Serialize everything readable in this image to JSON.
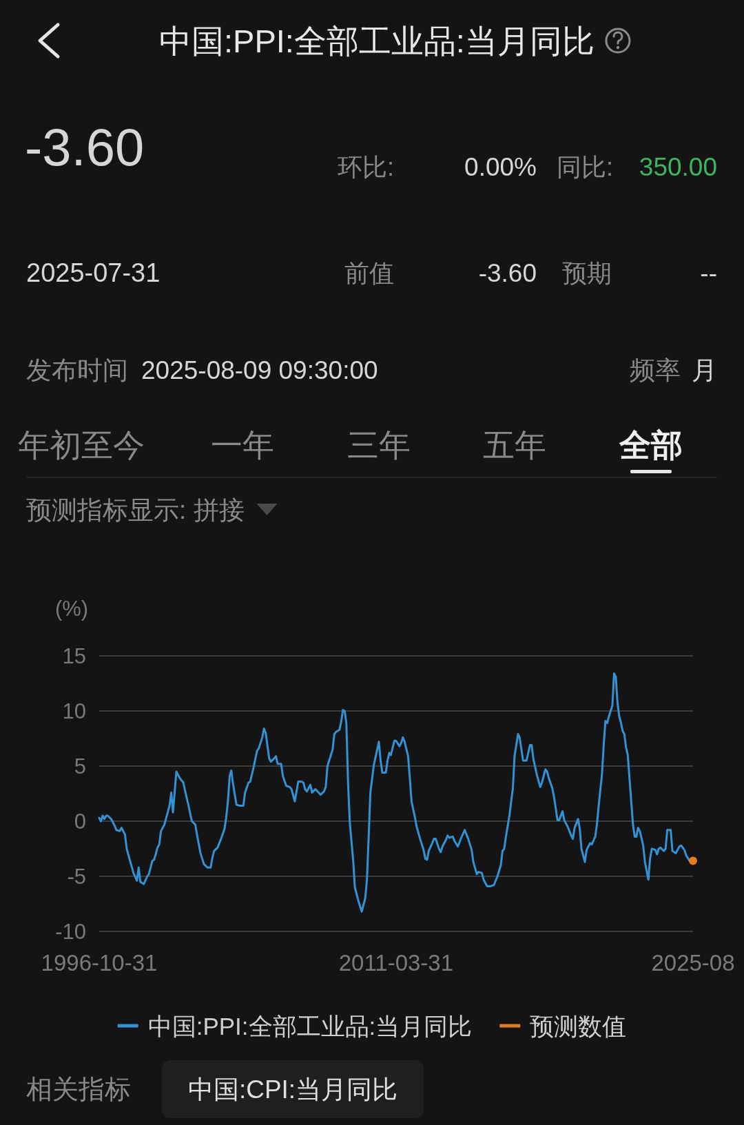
{
  "chart_data": {
    "type": "line",
    "title": "中国:PPI:全部工业品:当月同比",
    "ylabel": "(%)",
    "annotations": [
      "-3.60",
      "环比:",
      "0.00%",
      "同比:",
      "350.00",
      "2025-07-31",
      "前值",
      "-3.60",
      "预期",
      "--",
      "发布时间",
      "2025-08-09 09:30:00",
      "频率",
      "月",
      "年初至今",
      "一年",
      "三年",
      "五年",
      "全部",
      "预测指标显示: 拼接",
      "相关指标",
      "中国:CPI:当月同比"
    ],
    "xlim": [
      "1996-10",
      "2025-08"
    ],
    "xticks": [
      {
        "value": "1996-10",
        "label": "1996-10-31"
      },
      {
        "value": "2011-03",
        "label": "2011-03-31"
      },
      {
        "value": "2025-08",
        "label": "2025-08"
      }
    ],
    "ylim": [
      -10,
      15
    ],
    "yticks": [
      -10,
      -5,
      0,
      5,
      10,
      15
    ],
    "grid": "y",
    "legend": "bottom",
    "series": [
      {
        "name": "中国:PPI:全部工业品:当月同比",
        "color": "#3391d4",
        "x": [
          "1996-10",
          "1996-11",
          "1996-12",
          "1997-01",
          "1997-02",
          "1997-03",
          "1997-05",
          "1997-07",
          "1997-08",
          "1997-10",
          "1997-11",
          "1998-01",
          "1998-02",
          "1998-04",
          "1998-06",
          "1998-08",
          "1998-09",
          "1998-10",
          "1998-12",
          "1999-02",
          "1999-03",
          "1999-05",
          "1999-06",
          "1999-07",
          "1999-08",
          "1999-09",
          "1999-10",
          "1999-11",
          "1999-12",
          "2000-03",
          "2000-04",
          "2000-05",
          "2000-07",
          "2000-09",
          "2000-11",
          "2000-12",
          "2001-02",
          "2001-04",
          "2001-06",
          "2001-07",
          "2001-09",
          "2001-11",
          "2002-01",
          "2002-03",
          "2002-04",
          "2002-05",
          "2002-07",
          "2002-09",
          "2002-11",
          "2002-12",
          "2003-01",
          "2003-02",
          "2003-03",
          "2003-04",
          "2003-06",
          "2003-08",
          "2003-10",
          "2003-11",
          "2004-01",
          "2004-02",
          "2004-04",
          "2004-06",
          "2004-07",
          "2004-09",
          "2004-10",
          "2004-11",
          "2005-01",
          "2005-02",
          "2005-04",
          "2005-05",
          "2005-06",
          "2005-08",
          "2005-09",
          "2005-11",
          "2006-01",
          "2006-02",
          "2006-04",
          "2006-06",
          "2006-08",
          "2006-09",
          "2006-10",
          "2006-11",
          "2007-01",
          "2007-02",
          "2007-04",
          "2007-07",
          "2007-09",
          "2007-10",
          "2007-11",
          "2008-02",
          "2008-03",
          "2008-04",
          "2008-06",
          "2008-07",
          "2008-08",
          "2008-09",
          "2008-10",
          "2008-11",
          "2008-12",
          "2009-02",
          "2009-03",
          "2009-05",
          "2009-07",
          "2009-09",
          "2009-10",
          "2009-11",
          "2009-12",
          "2010-02",
          "2010-04",
          "2010-05",
          "2010-06",
          "2010-07",
          "2010-09",
          "2010-10",
          "2010-11",
          "2010-12",
          "2011-01",
          "2011-02",
          "2011-03",
          "2011-05",
          "2011-06",
          "2011-07",
          "2011-08",
          "2011-10",
          "2011-11",
          "2011-12",
          "2012-02",
          "2012-03",
          "2012-05",
          "2012-07",
          "2012-08",
          "2012-09",
          "2012-10",
          "2012-12",
          "2013-01",
          "2013-02",
          "2013-04",
          "2013-05",
          "2013-06",
          "2013-08",
          "2013-09",
          "2013-10",
          "2013-12",
          "2014-01",
          "2014-03",
          "2014-05",
          "2014-07",
          "2014-09",
          "2014-11",
          "2014-12",
          "2015-02",
          "2015-03",
          "2015-05",
          "2015-06",
          "2015-08",
          "2015-10",
          "2015-12",
          "2016-02",
          "2016-04",
          "2016-05",
          "2016-06",
          "2016-07",
          "2016-09",
          "2016-11",
          "2016-12",
          "2017-02",
          "2017-03",
          "2017-05",
          "2017-07",
          "2017-09",
          "2017-10",
          "2017-11",
          "2018-01",
          "2018-03",
          "2018-04",
          "2018-06",
          "2018-07",
          "2018-08",
          "2018-10",
          "2018-11",
          "2019-01",
          "2019-02",
          "2019-04",
          "2019-05",
          "2019-07",
          "2019-09",
          "2019-10",
          "2019-11",
          "2020-01",
          "2020-02",
          "2020-03",
          "2020-05",
          "2020-06",
          "2020-08",
          "2020-09",
          "2020-11",
          "2020-12",
          "2021-01",
          "2021-03",
          "2021-04",
          "2021-05",
          "2021-06",
          "2021-07",
          "2021-09",
          "2021-10",
          "2021-11",
          "2021-12",
          "2022-01",
          "2022-02",
          "2022-03",
          "2022-04",
          "2022-05",
          "2022-06",
          "2022-07",
          "2022-08",
          "2022-09",
          "2022-10",
          "2022-11",
          "2022-12",
          "2023-01",
          "2023-03",
          "2023-04",
          "2023-06",
          "2023-07",
          "2023-08",
          "2023-10",
          "2023-11",
          "2023-12",
          "2024-01",
          "2024-03",
          "2024-04",
          "2024-05",
          "2024-07",
          "2024-08",
          "2024-10",
          "2024-12",
          "2025-01",
          "2025-03",
          "2025-04",
          "2025-06",
          "2025-07"
        ],
        "values": [
          0.3,
          0.0,
          0.5,
          0.2,
          0.5,
          0.5,
          0.2,
          -0.4,
          -0.8,
          -0.9,
          -0.6,
          -1.2,
          -2.5,
          -3.6,
          -4.7,
          -5.4,
          -4.2,
          -5.5,
          -5.7,
          -5.0,
          -4.8,
          -3.6,
          -3.5,
          -3.0,
          -2.4,
          -2.1,
          -0.9,
          -0.6,
          -0.3,
          1.4,
          2.6,
          0.8,
          4.5,
          3.9,
          3.5,
          2.8,
          1.4,
          0.0,
          -0.3,
          -1.2,
          -2.9,
          -3.9,
          -4.2,
          -4.2,
          -3.3,
          -2.7,
          -2.4,
          -1.6,
          -0.7,
          0.3,
          1.8,
          4.1,
          4.6,
          3.4,
          1.5,
          1.4,
          1.4,
          2.6,
          3.5,
          3.6,
          4.9,
          6.4,
          6.6,
          7.6,
          8.4,
          8.0,
          5.7,
          5.4,
          5.7,
          5.9,
          5.2,
          5.2,
          4.1,
          3.2,
          3.1,
          2.9,
          1.8,
          3.6,
          3.6,
          3.5,
          2.9,
          2.7,
          3.3,
          2.6,
          2.9,
          2.4,
          2.7,
          3.1,
          5.0,
          6.5,
          7.9,
          8.1,
          8.3,
          9.0,
          10.1,
          10.0,
          8.9,
          3.4,
          -0.1,
          -3.7,
          -6.0,
          -7.2,
          -8.2,
          -7.0,
          -5.3,
          -1.4,
          2.6,
          5.1,
          6.5,
          7.2,
          5.5,
          4.4,
          4.4,
          5.5,
          6.2,
          6.0,
          6.7,
          7.3,
          7.3,
          6.8,
          7.1,
          7.6,
          7.2,
          5.9,
          3.9,
          1.8,
          0.3,
          -0.5,
          -1.6,
          -2.6,
          -3.4,
          -3.5,
          -2.7,
          -2.0,
          -1.6,
          -1.6,
          -2.5,
          -2.8,
          -2.3,
          -1.7,
          -1.3,
          -1.5,
          -1.4,
          -1.8,
          -2.3,
          -1.5,
          -0.8,
          -1.6,
          -2.6,
          -3.7,
          -4.8,
          -4.6,
          -4.7,
          -5.3,
          -5.9,
          -5.9,
          -5.8,
          -5.0,
          -4.0,
          -2.7,
          -2.5,
          -1.4,
          0.5,
          3.0,
          5.9,
          7.9,
          7.6,
          5.5,
          5.5,
          6.9,
          6.9,
          5.6,
          4.2,
          3.1,
          3.5,
          4.7,
          4.5,
          3.9,
          3.0,
          2.2,
          0.1,
          0.1,
          0.9,
          0.1,
          -0.5,
          -1.3,
          -1.6,
          -0.6,
          0.2,
          -0.7,
          -2.5,
          -3.7,
          -2.6,
          -2.0,
          -2.1,
          -1.4,
          -0.3,
          1.4,
          4.3,
          7.0,
          9.1,
          8.9,
          9.5,
          10.5,
          13.4,
          13.1,
          10.7,
          9.5,
          8.9,
          8.2,
          7.9,
          6.7,
          6.0,
          3.9,
          1.8,
          -0.3,
          -1.4,
          -1.4,
          -0.6,
          -0.9,
          -2.2,
          -3.7,
          -5.3,
          -3.4,
          -2.5,
          -2.6,
          -3.0,
          -2.5,
          -2.4,
          -2.7,
          -2.5,
          -0.8,
          -0.8,
          -2.7,
          -2.9,
          -2.3,
          -2.2,
          -2.6,
          -3.1,
          -3.6,
          -3.6
        ]
      },
      {
        "name": "预测数值",
        "type": "scatter",
        "marker": "circle",
        "color": "#e27d22",
        "x": [
          "2025-08"
        ],
        "values": [
          -3.6
        ]
      }
    ]
  }
}
